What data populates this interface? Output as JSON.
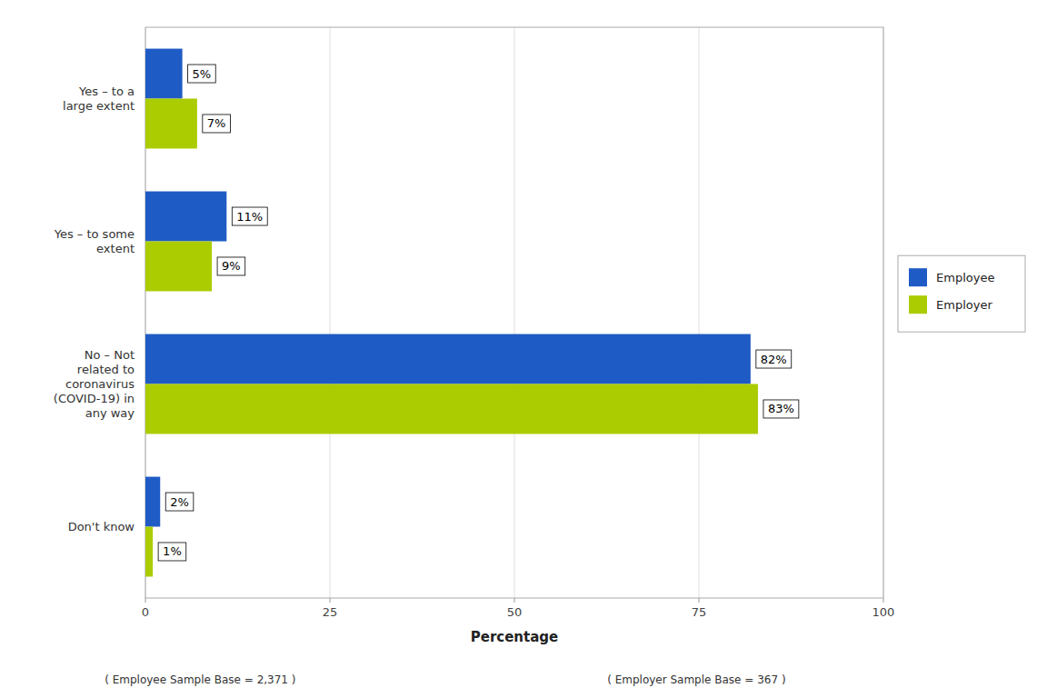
{
  "chart_data": {
    "type": "bar",
    "orientation": "horizontal",
    "categories": [
      "Yes – to a\nlarge extent",
      "Yes – to some\nextent",
      "No – Not\nrelated to\ncoronavirus\n(COVID-19) in\nany way",
      "Don't know"
    ],
    "series": [
      {
        "name": "Employee",
        "color": "#1F5BC4",
        "values": [
          5,
          11,
          82,
          2
        ],
        "value_labels": [
          "5%",
          "11%",
          "82%",
          "2%"
        ]
      },
      {
        "name": "Employer",
        "color": "#AACC00",
        "values": [
          7,
          9,
          83,
          1
        ],
        "value_labels": [
          "7%",
          "9%",
          "83%",
          "1%"
        ]
      }
    ],
    "xlabel": "Percentage",
    "xlim": [
      0,
      100
    ],
    "xticks": [
      0,
      25,
      50,
      75,
      100
    ],
    "grid": true,
    "legend": "right",
    "data_labels": true,
    "annotations": [
      "( Employee Sample Base =  2,371 )",
      "( Employer Sample Base =  367 )"
    ]
  }
}
